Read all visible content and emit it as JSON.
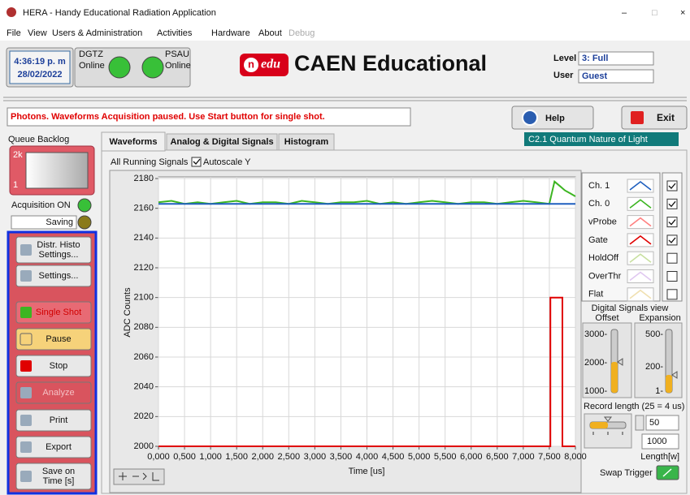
{
  "window": {
    "title": "HERA - Handy Educational Radiation Application",
    "minimize": "–",
    "maximize": "□",
    "close": "×"
  },
  "menu": [
    "File",
    "View",
    "Users & Administration",
    "Activities",
    "Hardware",
    "About",
    "Debug"
  ],
  "header": {
    "time": "4:36:19 p. m",
    "date": "28/02/2022",
    "dgtz": {
      "name": "DGTZ",
      "state": "Online"
    },
    "psau": {
      "name": "PSAU",
      "state": "Online"
    },
    "logo_mark": "n",
    "logo_sub": "edu",
    "brand": "CAEN Educational",
    "level_label": "Level",
    "level": "3: Full",
    "user_label": "User",
    "user": "Guest"
  },
  "status": "Photons. Waveforms Acquisition paused. Use Start button for single shot.",
  "help": "Help",
  "exit": "Exit",
  "queue": {
    "label": "Queue Backlog",
    "top": "2k",
    "bottom": "1"
  },
  "acquisition": "Acquisition ON",
  "saving": "Saving",
  "buttons": [
    {
      "lines": [
        "Distr. Histo",
        "Settings..."
      ],
      "style": "normal"
    },
    {
      "lines": [
        "Settings..."
      ],
      "style": "normal"
    },
    {
      "lines": [
        "Single Shot"
      ],
      "style": "alert"
    },
    {
      "lines": [
        "Pause"
      ],
      "style": "pause"
    },
    {
      "lines": [
        "Stop"
      ],
      "style": "normal"
    },
    {
      "lines": [
        "Analyze"
      ],
      "style": "disabled"
    },
    {
      "lines": [
        "Print"
      ],
      "style": "normal"
    },
    {
      "lines": [
        "Export"
      ],
      "style": "normal"
    },
    {
      "lines": [
        "Save on",
        "Time [s]"
      ],
      "style": "normal"
    }
  ],
  "tabs": [
    "Waveforms",
    "Analog & Digital Signals",
    "Histogram"
  ],
  "course": "C2.1 Quantum Nature of Light",
  "all_running": "All Running Signals",
  "autoscale": "Autoscale Y",
  "plot": {
    "xlabel": "Time [us]",
    "ylabel": "ADC Counts",
    "xlim": [
      0,
      8
    ],
    "ylim": [
      2000,
      2180
    ],
    "xticks": [
      {
        "value": 0,
        "label": "0,000"
      },
      {
        "value": 0.5,
        "label": "0,500"
      },
      {
        "value": 1,
        "label": "1,000"
      },
      {
        "value": 1.5,
        "label": "1,500"
      },
      {
        "value": 2,
        "label": "2,000"
      },
      {
        "value": 2.5,
        "label": "2,500"
      },
      {
        "value": 3,
        "label": "3,000"
      },
      {
        "value": 3.5,
        "label": "3,500"
      },
      {
        "value": 4,
        "label": "4,000"
      },
      {
        "value": 4.5,
        "label": "4,500"
      },
      {
        "value": 5,
        "label": "5,000"
      },
      {
        "value": 5.5,
        "label": "5,500"
      },
      {
        "value": 6,
        "label": "6,000"
      },
      {
        "value": 6.5,
        "label": "6,500"
      },
      {
        "value": 7,
        "label": "7,000"
      },
      {
        "value": 7.5,
        "label": "7,500"
      },
      {
        "value": 8,
        "label": "8,000"
      }
    ],
    "yticks": [
      2000,
      2020,
      2040,
      2060,
      2080,
      2100,
      2120,
      2140,
      2160,
      2180
    ],
    "grid": true,
    "legend": [
      {
        "name": "Ch. 1",
        "color": "#1f5fbf",
        "checked": true,
        "x": [
          0,
          8
        ],
        "values": [
          2163,
          2163
        ]
      },
      {
        "name": "Ch. 0",
        "color": "#3cb521",
        "checked": true,
        "x": [
          0,
          0.25,
          0.5,
          0.75,
          1,
          1.25,
          1.5,
          1.75,
          2,
          2.25,
          2.5,
          2.75,
          3,
          3.25,
          3.5,
          3.75,
          4,
          4.25,
          4.5,
          4.75,
          5,
          5.25,
          5.5,
          5.75,
          6,
          6.25,
          6.5,
          6.75,
          7,
          7.25,
          7.5,
          7.6,
          7.7,
          7.8,
          7.9,
          8
        ],
        "values": [
          2164,
          2165,
          2163,
          2164,
          2163,
          2164,
          2165,
          2163,
          2164,
          2164,
          2163,
          2165,
          2164,
          2163,
          2164,
          2164,
          2165,
          2163,
          2164,
          2163,
          2164,
          2165,
          2164,
          2163,
          2164,
          2164,
          2163,
          2164,
          2165,
          2164,
          2163,
          2178,
          2175,
          2172,
          2170,
          2168
        ]
      },
      {
        "name": "vProbe",
        "color": "#ff8080",
        "checked": true
      },
      {
        "name": "Gate",
        "color": "#e00000",
        "checked": true,
        "x": [
          0,
          7.52,
          7.52,
          7.75,
          7.75,
          8
        ],
        "values": [
          2000,
          2000,
          2100,
          2100,
          2000,
          2000
        ]
      },
      {
        "name": "HoldOff",
        "color": "#c8e0a0",
        "checked": false
      },
      {
        "name": "OverThr",
        "color": "#e0c8f0",
        "checked": false
      },
      {
        "name": "Flat",
        "color": "#f0e0b0",
        "checked": false
      }
    ]
  },
  "digital": {
    "title": "Digital Signals view",
    "offset": "Offset",
    "expansion": "Expansion",
    "offset_scale": [
      "3000-",
      "2000-",
      "1000-"
    ],
    "expansion_scale": [
      "500-",
      "200-",
      "1-"
    ]
  },
  "record": {
    "label": "Record length (25 = 4 us)",
    "scale": [
      "25",
      "50",
      "75"
    ],
    "value": "50",
    "length": "1000",
    "length_label": "Length[w]"
  },
  "swap": "Swap Trigger"
}
